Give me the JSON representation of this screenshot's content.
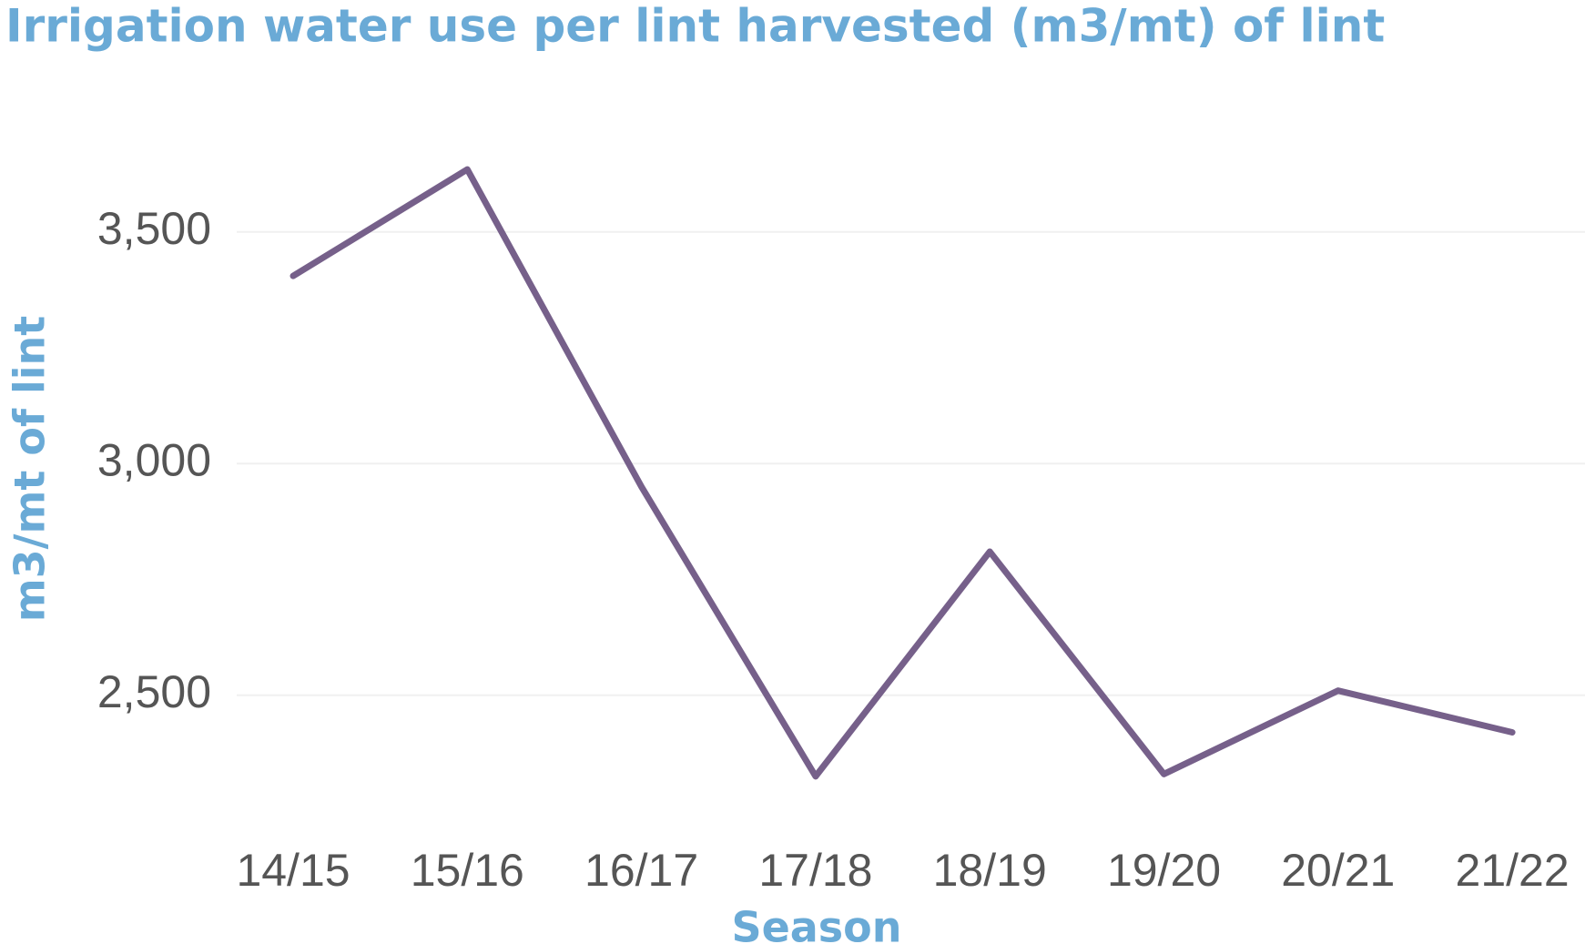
{
  "chart_data": {
    "type": "line",
    "title": "Irrigation water use per lint harvested (m3/mt) of lint",
    "x_label": "Season",
    "y_label": "m3/mt of lint",
    "categories": [
      "14/15",
      "15/16",
      "16/17",
      "17/18",
      "18/19",
      "19/20",
      "20/21",
      "21/22"
    ],
    "series": [
      {
        "name": "m3/mt of lint",
        "color": "#76608a",
        "values": [
          3405,
          3635,
          2950,
          2325,
          2810,
          2330,
          2510,
          2420
        ]
      }
    ],
    "ylim": [
      2250,
      3700
    ],
    "yticks": [
      {
        "value": 2500,
        "label": "2,500"
      },
      {
        "value": 3000,
        "label": "3,000"
      },
      {
        "value": 3500,
        "label": "3,500"
      }
    ],
    "grid": true
  }
}
